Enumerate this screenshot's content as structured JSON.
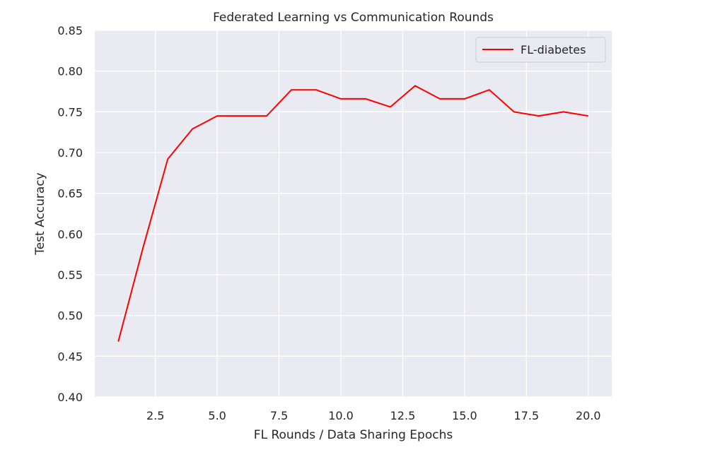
{
  "chart_data": {
    "type": "line",
    "title": "Federated Learning vs Communication Rounds",
    "xlabel": "FL Rounds / Data Sharing Epochs",
    "ylabel": "Test Accuracy",
    "xlim": [
      0.05,
      20.95
    ],
    "ylim": [
      0.4,
      0.85
    ],
    "xticks": [
      "2.5",
      "5.0",
      "7.5",
      "10.0",
      "12.5",
      "15.0",
      "17.5",
      "20.0"
    ],
    "xtick_values": [
      2.5,
      5.0,
      7.5,
      10.0,
      12.5,
      15.0,
      17.5,
      20.0
    ],
    "yticks": [
      "0.40",
      "0.45",
      "0.50",
      "0.55",
      "0.60",
      "0.65",
      "0.70",
      "0.75",
      "0.80",
      "0.85"
    ],
    "ytick_values": [
      0.4,
      0.45,
      0.5,
      0.55,
      0.6,
      0.65,
      0.7,
      0.75,
      0.8,
      0.85
    ],
    "grid": true,
    "legend_position": "top-right",
    "series": [
      {
        "name": "FL-diabetes",
        "color": "#ff0000",
        "x": [
          1,
          2,
          3,
          4,
          5,
          6,
          7,
          8,
          9,
          10,
          11,
          12,
          13,
          14,
          15,
          16,
          17,
          18,
          19,
          20
        ],
        "y": [
          0.468,
          0.583,
          0.692,
          0.729,
          0.745,
          0.745,
          0.745,
          0.777,
          0.777,
          0.766,
          0.766,
          0.756,
          0.782,
          0.766,
          0.766,
          0.777,
          0.75,
          0.745,
          0.75,
          0.745
        ]
      }
    ],
    "style": {
      "plot_bg": "#eaeaf2",
      "grid_color": "#ffffff",
      "text_color": "#262626"
    }
  }
}
